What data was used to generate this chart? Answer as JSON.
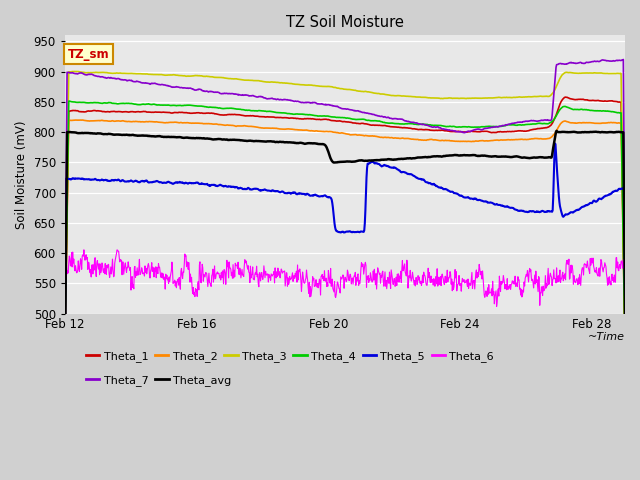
{
  "title": "TZ Soil Moisture",
  "ylabel": "Soil Moisture (mV)",
  "ylim": [
    500,
    960
  ],
  "yticks": [
    500,
    550,
    600,
    650,
    700,
    750,
    800,
    850,
    900,
    950
  ],
  "date_labels": [
    "Feb 12",
    "Feb 16",
    "Feb 20",
    "Feb 24",
    "Feb 28"
  ],
  "date_positions": [
    0,
    4,
    8,
    12,
    16
  ],
  "total_days": 17,
  "fig_bg": "#d0d0d0",
  "plot_bg": "#e8e8e8",
  "grid_color": "#ffffff",
  "series_colors": {
    "Theta_1": "#cc0000",
    "Theta_2": "#ff8800",
    "Theta_3": "#cccc00",
    "Theta_4": "#00cc00",
    "Theta_5": "#0000dd",
    "Theta_6": "#ff00ff",
    "Theta_7": "#8800cc",
    "Theta_avg": "#000000"
  },
  "legend_box_text": "TZ_sm",
  "legend_box_facecolor": "#ffffcc",
  "legend_box_edgecolor": "#cc8800",
  "n_points": 1000
}
